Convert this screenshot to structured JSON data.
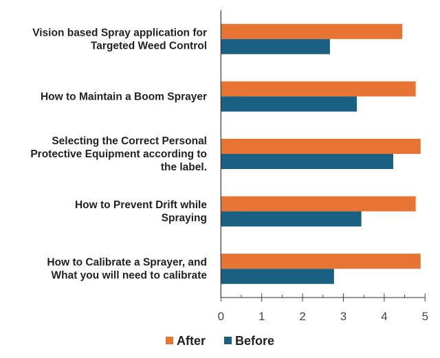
{
  "chart_data": {
    "type": "bar",
    "orientation": "horizontal",
    "categories": [
      [
        "Vision based Spray application for",
        "Targeted Weed Control"
      ],
      [
        "How to Maintain a Boom Sprayer"
      ],
      [
        "Selecting the Correct Personal",
        "Protective Equipment according to",
        "the label."
      ],
      [
        "How to Prevent Drift while",
        "Spraying"
      ],
      [
        "How to Calibrate a Sprayer, and",
        "What you will need to calibrate"
      ]
    ],
    "series": [
      {
        "name": "After",
        "color": "#E87434",
        "values": [
          4.44,
          4.77,
          4.89,
          4.77,
          4.89
        ]
      },
      {
        "name": "Before",
        "color": "#1A6082",
        "values": [
          2.67,
          3.33,
          4.22,
          3.44,
          2.77
        ]
      }
    ],
    "xlim": [
      0,
      5
    ],
    "xticks": [
      "0",
      "1",
      "2",
      "3",
      "4",
      "5"
    ],
    "title": "",
    "xlabel": "",
    "ylabel": "",
    "grid": false,
    "legend": "bottom"
  }
}
